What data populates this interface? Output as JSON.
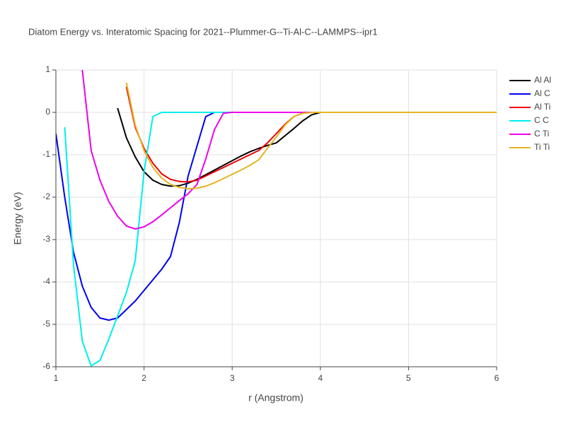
{
  "chart_data": {
    "type": "line",
    "title": "Diatom Energy vs. Interatomic Spacing for 2021--Plummer-G--Ti-Al-C--LAMMPS--ipr1",
    "x_label": "r (Angstrom)",
    "y_label": "Energy (eV)",
    "x": [
      1.0,
      1.1,
      1.2,
      1.3,
      1.4,
      1.5,
      1.6,
      1.7,
      1.8,
      1.9,
      2.0,
      2.1,
      2.2,
      2.3,
      2.4,
      2.5,
      2.6,
      2.7,
      2.8,
      2.9,
      3.0,
      3.1,
      3.2,
      3.3,
      3.4,
      3.5,
      3.6,
      3.7,
      3.8,
      3.9,
      4.0,
      6.0
    ],
    "series": [
      {
        "name": "Al Al",
        "color": "#000000",
        "values": [
          null,
          null,
          null,
          null,
          null,
          null,
          null,
          0.1,
          -0.6,
          -1.05,
          -1.4,
          -1.6,
          -1.7,
          -1.74,
          -1.73,
          -1.67,
          -1.58,
          -1.47,
          -1.36,
          -1.25,
          -1.14,
          -1.03,
          -0.93,
          -0.85,
          -0.78,
          -0.72,
          -0.55,
          -0.38,
          -0.2,
          -0.06,
          0,
          0
        ]
      },
      {
        "name": "Al C",
        "color": "#0000ee",
        "values": [
          -0.5,
          -2.0,
          -3.3,
          -4.1,
          -4.6,
          -4.85,
          -4.9,
          -4.85,
          -4.65,
          -4.45,
          -4.2,
          -3.95,
          -3.7,
          -3.4,
          -2.6,
          -1.5,
          -0.8,
          -0.1,
          0,
          0,
          0,
          0,
          0,
          0,
          0,
          0,
          0,
          0,
          0,
          0,
          0,
          0
        ]
      },
      {
        "name": "Al Ti",
        "color": "#ee0000",
        "values": [
          null,
          null,
          null,
          null,
          null,
          null,
          null,
          null,
          0.6,
          -0.35,
          -0.85,
          -1.2,
          -1.45,
          -1.58,
          -1.63,
          -1.64,
          -1.6,
          -1.5,
          -1.4,
          -1.3,
          -1.2,
          -1.1,
          -1.0,
          -0.9,
          -0.72,
          -0.5,
          -0.28,
          -0.1,
          -0.02,
          0,
          0,
          0
        ]
      },
      {
        "name": "C C",
        "color": "#00eeee",
        "values": [
          null,
          -0.35,
          -3.6,
          -5.4,
          -5.98,
          -5.85,
          -5.35,
          -4.8,
          -4.25,
          -3.5,
          -1.4,
          -0.1,
          0,
          0,
          0,
          0,
          0,
          0,
          0,
          0,
          0,
          0,
          0,
          0,
          0,
          0,
          0,
          0,
          0,
          0,
          0,
          0
        ]
      },
      {
        "name": "C Ti",
        "color": "#ee00ee",
        "values": [
          null,
          null,
          null,
          1.0,
          -0.9,
          -1.6,
          -2.1,
          -2.45,
          -2.68,
          -2.75,
          -2.7,
          -2.58,
          -2.42,
          -2.25,
          -2.08,
          -1.92,
          -1.7,
          -1.1,
          -0.4,
          -0.02,
          0,
          0,
          0,
          0,
          0,
          0,
          0,
          0,
          0,
          0,
          0,
          0
        ]
      },
      {
        "name": "Ti Ti",
        "color": "#e6b41e",
        "values": [
          null,
          null,
          null,
          null,
          null,
          null,
          null,
          null,
          0.7,
          -0.3,
          -0.9,
          -1.3,
          -1.55,
          -1.7,
          -1.77,
          -1.8,
          -1.79,
          -1.74,
          -1.66,
          -1.56,
          -1.46,
          -1.36,
          -1.25,
          -1.12,
          -0.85,
          -0.58,
          -0.3,
          -0.1,
          -0.02,
          0,
          0,
          0
        ]
      }
    ],
    "xlim": [
      1,
      6
    ],
    "ylim": [
      -6,
      1
    ],
    "xticks": [
      1,
      2,
      3,
      4,
      5,
      6
    ],
    "yticks": [
      -6,
      -5,
      -4,
      -3,
      -2,
      -1,
      0,
      1
    ],
    "grid": true,
    "legend": "right"
  }
}
